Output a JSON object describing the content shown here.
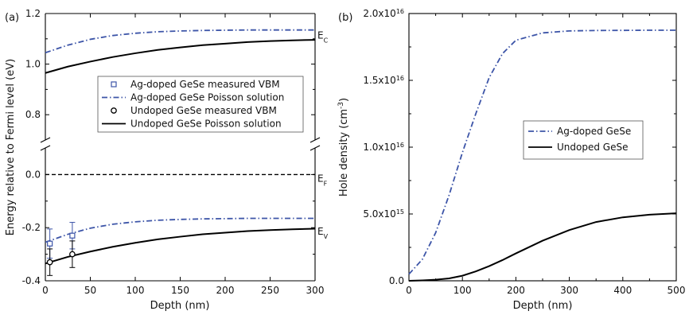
{
  "chart_data": [
    {
      "panel_label": "(a)",
      "type": "line",
      "xlabel": "Depth (nm)",
      "ylabel": "Energy relative to Fermi level (eV)",
      "xlim": [
        0,
        300
      ],
      "ylim_upper": [
        0.6,
        1.2
      ],
      "ylim_lower": [
        -0.4,
        0.1
      ],
      "y_axis_break": true,
      "x_ticks": [
        "0",
        "50",
        "100",
        "150",
        "200",
        "250",
        "300"
      ],
      "y_ticks_upper": [
        "0.8",
        "1.0",
        "1.2"
      ],
      "y_ticks_lower": [
        "-0.4",
        "-0.2",
        "0.0"
      ],
      "level_labels": [
        {
          "base": "E",
          "sub": "C",
          "y": 1.13
        },
        {
          "base": "E",
          "sub": "F",
          "y": 0.0
        },
        {
          "base": "E",
          "sub": "V",
          "y": -0.2
        }
      ],
      "fermi_level": {
        "y": 0.0,
        "style": "dashed",
        "color": "#000000"
      },
      "series": [
        {
          "name": "Ag-doped GeSe Poisson solution",
          "style": "dashdot",
          "color": "#3d55a8",
          "x": [
            0,
            25,
            50,
            75,
            100,
            125,
            150,
            175,
            200,
            225,
            250,
            275,
            300
          ],
          "y": [
            1.045,
            1.075,
            1.098,
            1.113,
            1.122,
            1.128,
            1.131,
            1.133,
            1.134,
            1.135,
            1.135,
            1.135,
            1.135
          ]
        },
        {
          "name": "Undoped GeSe Poisson solution",
          "style": "solid",
          "color": "#000000",
          "x": [
            0,
            25,
            50,
            75,
            100,
            125,
            150,
            175,
            200,
            225,
            250,
            275,
            300
          ],
          "y": [
            0.965,
            0.99,
            1.01,
            1.028,
            1.043,
            1.056,
            1.066,
            1.075,
            1.081,
            1.087,
            1.091,
            1.094,
            1.096
          ]
        },
        {
          "name": "Ag-doped GeSe Poisson solution",
          "style": "dashdot",
          "color": "#3d55a8",
          "x": [
            0,
            25,
            50,
            75,
            100,
            125,
            150,
            175,
            200,
            225,
            250,
            275,
            300
          ],
          "y": [
            -0.255,
            -0.225,
            -0.202,
            -0.187,
            -0.178,
            -0.172,
            -0.169,
            -0.167,
            -0.166,
            -0.165,
            -0.165,
            -0.165,
            -0.165
          ]
        },
        {
          "name": "Undoped GeSe Poisson solution",
          "style": "solid",
          "color": "#000000",
          "x": [
            0,
            25,
            50,
            75,
            100,
            125,
            150,
            175,
            200,
            225,
            250,
            275,
            300
          ],
          "y": [
            -0.335,
            -0.31,
            -0.29,
            -0.272,
            -0.257,
            -0.244,
            -0.234,
            -0.225,
            -0.219,
            -0.213,
            -0.209,
            -0.206,
            -0.204
          ]
        }
      ],
      "points": [
        {
          "name": "Ag-doped GeSe measured VBM",
          "marker": "square",
          "color": "#3d55a8",
          "x": [
            5,
            30
          ],
          "y": [
            -0.26,
            -0.23
          ],
          "err": [
            0.055,
            0.05
          ]
        },
        {
          "name": "Undoped GeSe measured VBM",
          "marker": "circle",
          "color": "#000000",
          "x": [
            5,
            30
          ],
          "y": [
            -0.33,
            -0.3
          ],
          "err": [
            0.05,
            0.05
          ]
        }
      ],
      "legend": [
        {
          "name": "Ag-doped GeSe measured VBM",
          "kind": "square",
          "color": "#3d55a8"
        },
        {
          "name": "Ag-doped GeSe Poisson solution",
          "kind": "dashdot",
          "color": "#3d55a8"
        },
        {
          "name": "Undoped GeSe measured VBM",
          "kind": "circle",
          "color": "#000000"
        },
        {
          "name": "Undoped GeSe Poisson solution",
          "kind": "solid",
          "color": "#000000"
        }
      ]
    },
    {
      "panel_label": "(b)",
      "type": "line",
      "xlabel": "Depth (nm)",
      "ylabel_base": "Hole density (cm",
      "ylabel_sup": "-3",
      "ylabel_end": ")",
      "xlim": [
        0,
        500
      ],
      "ylim": [
        0,
        2e+16
      ],
      "x_ticks": [
        "0",
        "100",
        "200",
        "300",
        "400",
        "500"
      ],
      "y_ticks": [
        {
          "v": 0,
          "mant": "0.0",
          "exp": ""
        },
        {
          "v": 5000000000000000.0,
          "mant": "5.0x10",
          "exp": "15"
        },
        {
          "v": 1e+16,
          "mant": "1.0x10",
          "exp": "16"
        },
        {
          "v": 1.5e+16,
          "mant": "1.5x10",
          "exp": "16"
        },
        {
          "v": 2e+16,
          "mant": "2.0x10",
          "exp": "16"
        }
      ],
      "series": [
        {
          "name": "Ag-doped GeSe",
          "style": "dashdot",
          "color": "#3d55a8",
          "x": [
            0,
            25,
            50,
            75,
            100,
            125,
            150,
            175,
            200,
            250,
            300,
            350,
            400,
            450,
            500
          ],
          "y": [
            500000000000000.0,
            1600000000000000.0,
            3600000000000000.0,
            6400000000000000.0,
            9600000000000000.0,
            1.25e+16,
            1.52e+16,
            1.7e+16,
            1.8e+16,
            1.855e+16,
            1.87e+16,
            1.873e+16,
            1.874e+16,
            1.875e+16,
            1.875e+16
          ]
        },
        {
          "name": "Undoped GeSe",
          "style": "solid",
          "color": "#000000",
          "x": [
            0,
            25,
            50,
            75,
            100,
            125,
            150,
            175,
            200,
            250,
            300,
            350,
            400,
            450,
            500
          ],
          "y": [
            0,
            30000000000000.0,
            80000000000000.0,
            180000000000000.0,
            380000000000000.0,
            700000000000000.0,
            1100000000000000.0,
            1550000000000000.0,
            2050000000000000.0,
            3000000000000000.0,
            3800000000000000.0,
            4400000000000000.0,
            4750000000000000.0,
            4950000000000000.0,
            5050000000000000.0
          ]
        }
      ],
      "legend": [
        {
          "name": "Ag-doped GeSe",
          "kind": "dashdot",
          "color": "#3d55a8"
        },
        {
          "name": "Undoped GeSe",
          "kind": "solid",
          "color": "#000000"
        }
      ]
    }
  ]
}
